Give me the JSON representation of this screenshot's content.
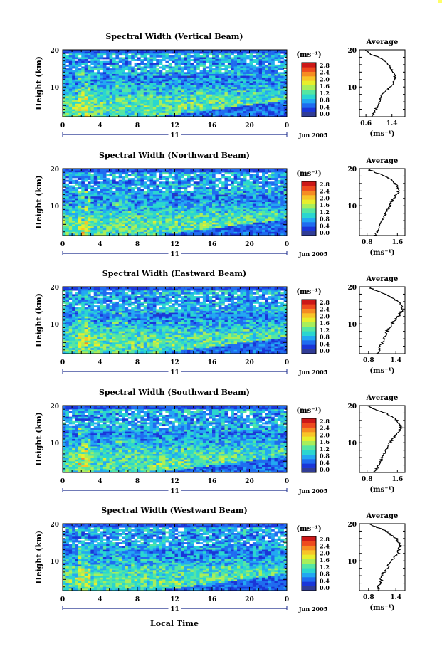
{
  "figure": {
    "xlabel": "Local Time",
    "colorbar_unit": "(ms⁻¹)",
    "colorbar_ticks": [
      "2.8",
      "2.4",
      "2.0",
      "1.6",
      "1.2",
      "0.8",
      "0.4",
      "0.0"
    ],
    "time_ticks": [
      "0",
      "4",
      "8",
      "12",
      "16",
      "20",
      "0"
    ],
    "day_label": "11",
    "date_label": "Jun 2005",
    "ylabel": "Height (km)",
    "height_ticks": [
      "20",
      "10"
    ],
    "profile_title": "Average",
    "profile_unit": "(ms⁻¹)"
  },
  "panels": [
    {
      "title": "Spectral Width (Vertical Beam)",
      "profile_ticks": [
        "0.6",
        "1.4"
      ]
    },
    {
      "title": "Spectral Width (Northward Beam)",
      "profile_ticks": [
        "0.8",
        "1.6"
      ]
    },
    {
      "title": "Spectral Width (Eastward Beam)",
      "profile_ticks": [
        "0.8",
        "1.4"
      ]
    },
    {
      "title": "Spectral Width (Southward Beam)",
      "profile_ticks": [
        "0.8",
        "1.6"
      ]
    },
    {
      "title": "Spectral Width (Westward Beam)",
      "profile_ticks": [
        "0.8",
        "1.4"
      ]
    }
  ],
  "chart_data": [
    {
      "type": "heatmap",
      "title": "Spectral Width (Vertical Beam)",
      "xlabel": "",
      "ylabel": "Height (km)",
      "xlim": [
        0,
        24
      ],
      "ylim": [
        2,
        20
      ],
      "colorbar": {
        "label": "(ms⁻¹)",
        "range": [
          0.0,
          3.0
        ]
      },
      "profile": {
        "title": "Average",
        "xlim": [
          0.4,
          1.8
        ],
        "xticks": [
          0.6,
          1.4
        ],
        "heights": [
          2,
          4,
          6,
          8,
          10,
          12,
          14,
          16,
          18,
          19,
          20
        ],
        "values": [
          0.8,
          0.9,
          1.0,
          1.1,
          1.35,
          1.5,
          1.45,
          1.3,
          1.0,
          0.7,
          0.6
        ]
      }
    },
    {
      "type": "heatmap",
      "title": "Spectral Width (Northward Beam)",
      "xlabel": "",
      "ylabel": "Height (km)",
      "xlim": [
        0,
        24
      ],
      "ylim": [
        2,
        20
      ],
      "colorbar": {
        "label": "(ms⁻¹)",
        "range": [
          0.0,
          3.0
        ]
      },
      "profile": {
        "title": "Average",
        "xlim": [
          0.6,
          1.8
        ],
        "xticks": [
          0.8,
          1.6
        ],
        "heights": [
          2,
          4,
          6,
          8,
          10,
          12,
          14,
          16,
          18,
          19,
          20
        ],
        "values": [
          1.0,
          1.1,
          1.2,
          1.3,
          1.4,
          1.5,
          1.65,
          1.55,
          1.3,
          1.0,
          0.8
        ]
      }
    },
    {
      "type": "heatmap",
      "title": "Spectral Width (Eastward Beam)",
      "xlabel": "",
      "ylabel": "Height (km)",
      "xlim": [
        0,
        24
      ],
      "ylim": [
        2,
        20
      ],
      "colorbar": {
        "label": "(ms⁻¹)",
        "range": [
          0.0,
          3.0
        ]
      },
      "profile": {
        "title": "Average",
        "xlim": [
          0.6,
          1.6
        ],
        "xticks": [
          0.8,
          1.4
        ],
        "heights": [
          2,
          4,
          6,
          8,
          10,
          12,
          14,
          16,
          18,
          19,
          20
        ],
        "values": [
          1.0,
          1.05,
          1.15,
          1.2,
          1.3,
          1.45,
          1.55,
          1.45,
          1.2,
          0.95,
          0.8
        ]
      }
    },
    {
      "type": "heatmap",
      "title": "Spectral Width (Southward Beam)",
      "xlabel": "",
      "ylabel": "Height (km)",
      "xlim": [
        0,
        24
      ],
      "ylim": [
        2,
        20
      ],
      "colorbar": {
        "label": "(ms⁻¹)",
        "range": [
          0.0,
          3.0
        ]
      },
      "profile": {
        "title": "Average",
        "xlim": [
          0.6,
          1.8
        ],
        "xticks": [
          0.8,
          1.6
        ],
        "heights": [
          2,
          4,
          6,
          8,
          10,
          12,
          14,
          16,
          18,
          19,
          20
        ],
        "values": [
          1.0,
          1.1,
          1.2,
          1.3,
          1.4,
          1.55,
          1.7,
          1.6,
          1.3,
          1.0,
          0.8
        ]
      }
    },
    {
      "type": "heatmap",
      "title": "Spectral Width (Westward Beam)",
      "xlabel": "Local Time",
      "ylabel": "Height (km)",
      "xlim": [
        0,
        24
      ],
      "ylim": [
        2,
        20
      ],
      "colorbar": {
        "label": "(ms⁻¹)",
        "range": [
          0.0,
          3.0
        ]
      },
      "profile": {
        "title": "Average",
        "xlim": [
          0.6,
          1.6
        ],
        "xticks": [
          0.8,
          1.4
        ],
        "heights": [
          2,
          4,
          6,
          8,
          10,
          12,
          14,
          16,
          18,
          19,
          20
        ],
        "values": [
          1.0,
          1.05,
          1.1,
          1.2,
          1.3,
          1.45,
          1.5,
          1.4,
          1.2,
          1.0,
          0.8
        ]
      }
    }
  ],
  "colors": {
    "colormap": [
      "#303c96",
      "#1a36d8",
      "#1f6cf0",
      "#22a8f2",
      "#2ad6d0",
      "#55e6a2",
      "#a8ee5a",
      "#e8ee2c",
      "#f8c428",
      "#f68c22",
      "#ee4a1e",
      "#cc1818"
    ],
    "background": "#ffffff",
    "axis": "#000000",
    "time_axis": "#1a2a8c",
    "profile_line": "#000000"
  }
}
